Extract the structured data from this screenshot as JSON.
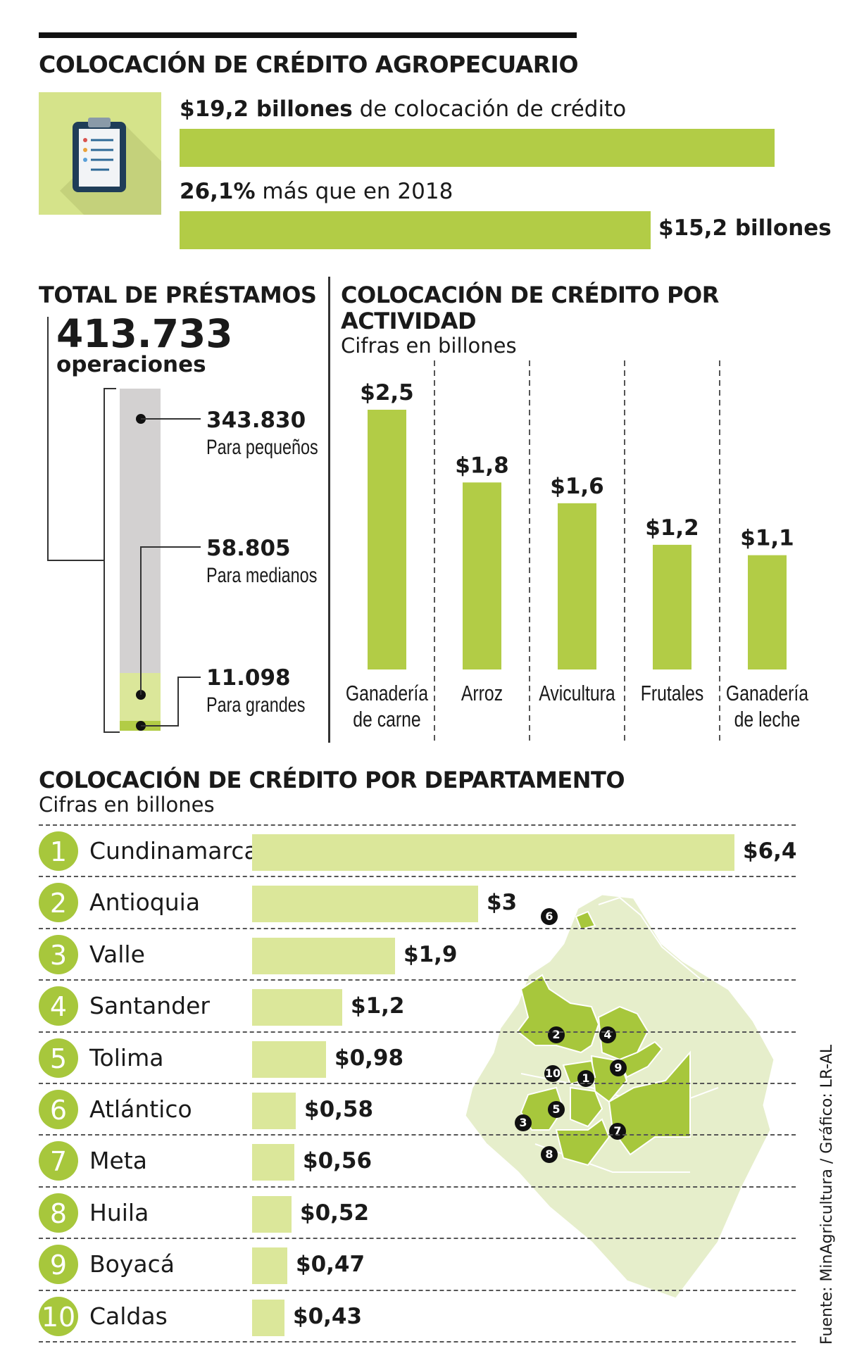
{
  "header": {
    "title": "COLOCACIÓN DE CRÉDITO AGROPECUARIO",
    "total_value_bold": "$19,2 billones",
    "total_value_rest": "de colocación de crédito",
    "growth_bold": "26,1%",
    "growth_rest": "más que en 2018",
    "previous_value": "$15,2 billones",
    "bars": [
      {
        "label": "$19,2 billones",
        "value": 19.2
      },
      {
        "label": "$15,2 billones",
        "value": 15.2
      }
    ]
  },
  "loans": {
    "title": "TOTAL DE PRÉSTAMOS",
    "total": "413.733",
    "total_label": "operaciones",
    "segments": [
      {
        "value": "343.830",
        "label": "Para pequeños",
        "count": 343830
      },
      {
        "value": "58.805",
        "label": "Para medianos",
        "count": 58805
      },
      {
        "value": "11.098",
        "label": "Para grandes",
        "count": 11098
      }
    ]
  },
  "activity": {
    "title_line1": "COLOCACIÓN DE CRÉDITO POR",
    "title_line2": "ACTIVIDAD",
    "subtitle": "Cifras en billones"
  },
  "department": {
    "title": "COLOCACIÓN DE CRÉDITO POR DEPARTAMENTO",
    "subtitle": "Cifras en billones"
  },
  "map_badges": [
    "1",
    "2",
    "3",
    "4",
    "5",
    "6",
    "7",
    "8",
    "9",
    "10"
  ],
  "source": "Fuente: MinAgricultura / Gráfico: LR-AL",
  "colors": {
    "bar_green": "#b2cc46",
    "light_green": "#dbe79a",
    "rank_green": "#a7c73c",
    "icon_bg": "#d5e38a",
    "gray": "#d3d1d1",
    "map_base": "#e6eecb"
  },
  "chart_data": [
    {
      "type": "bar",
      "title": "COLOCACIÓN DE CRÉDITO POR ACTIVIDAD",
      "subtitle": "Cifras en billones",
      "categories": [
        "Ganadería de carne",
        "Arroz",
        "Avicultura",
        "Frutales",
        "Ganadería de leche"
      ],
      "category_lines": [
        [
          "Ganadería",
          "de carne"
        ],
        [
          "Arroz"
        ],
        [
          "Avicultura"
        ],
        [
          "Frutales"
        ],
        [
          "Ganadería",
          "de leche"
        ]
      ],
      "values": [
        2.5,
        1.8,
        1.6,
        1.2,
        1.1
      ],
      "labels": [
        "$2,5",
        "$1,8",
        "$1,6",
        "$1,2",
        "$1,1"
      ],
      "ylim": [
        0,
        2.5
      ],
      "grid": false
    },
    {
      "type": "bar",
      "orientation": "horizontal",
      "title": "COLOCACIÓN DE CRÉDITO POR DEPARTAMENTO",
      "subtitle": "Cifras en billones",
      "ranks": [
        "1",
        "2",
        "3",
        "4",
        "5",
        "6",
        "7",
        "8",
        "9",
        "10"
      ],
      "categories": [
        "Cundinamarca",
        "Antioquia",
        "Valle",
        "Santander",
        "Tolima",
        "Atlántico",
        "Meta",
        "Huila",
        "Boyacá",
        "Caldas"
      ],
      "values": [
        6.4,
        3,
        1.9,
        1.2,
        0.98,
        0.58,
        0.56,
        0.52,
        0.47,
        0.43
      ],
      "labels": [
        "$6,4",
        "$3",
        "$1,9",
        "$1,2",
        "$0,98",
        "$0,58",
        "$0,56",
        "$0,52",
        "$0,47",
        "$0,43"
      ],
      "xlim": [
        0,
        6.4
      ]
    }
  ]
}
